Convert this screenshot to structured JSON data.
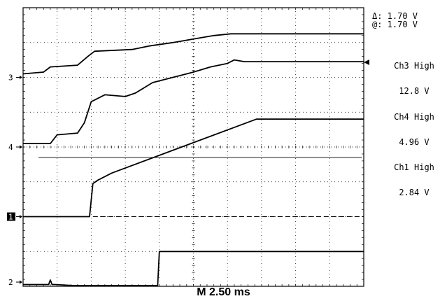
{
  "cursor": {
    "delta_label": "Δ: 1.70 V",
    "at_label": "@: 1.70 V"
  },
  "timebase_label": "M 2.50 ms",
  "chart_data": {
    "type": "line",
    "title": "",
    "xlabel": "",
    "ylabel": "",
    "grid": true,
    "x_divisions": 10,
    "y_divisions": 8,
    "xlim": [
      0,
      10
    ],
    "ylim": [
      0,
      8
    ],
    "channel_markers": [
      {
        "label": "3",
        "level": 6.0
      },
      {
        "label": "4",
        "level": 4.0
      },
      {
        "label": "1",
        "level": 2.0,
        "highlight": true
      },
      {
        "label": "2",
        "level": 0.0
      }
    ],
    "readouts": [
      {
        "channel": "Ch3",
        "label": "Ch3 High",
        "value": "12.8 V"
      },
      {
        "channel": "Ch4",
        "label": "Ch4 High",
        "value": "4.96 V"
      },
      {
        "channel": "Ch1",
        "label": "Ch1 High",
        "value": "2.84 V"
      }
    ],
    "cursor_level": 3.7,
    "trigger_level": 6.4,
    "series": [
      {
        "channel": "Ch3",
        "x": [
          0,
          0.6,
          0.8,
          1.6,
          1.9,
          2.1,
          3.2,
          3.7,
          4.4,
          5.0,
          5.6,
          6.1,
          7.0,
          10.0
        ],
        "y": [
          6.1,
          6.15,
          6.3,
          6.35,
          6.6,
          6.75,
          6.8,
          6.9,
          7.0,
          7.1,
          7.2,
          7.25,
          7.25,
          7.25
        ]
      },
      {
        "channel": "Ch4",
        "x": [
          0,
          0.8,
          1.0,
          1.6,
          1.8,
          2.0,
          2.4,
          3.0,
          3.3,
          3.8,
          4.2,
          5.0,
          5.5,
          6.0,
          6.2,
          6.5,
          7.0,
          10.0
        ],
        "y": [
          4.1,
          4.1,
          4.35,
          4.4,
          4.7,
          5.3,
          5.5,
          5.45,
          5.55,
          5.85,
          5.95,
          6.15,
          6.3,
          6.4,
          6.5,
          6.45,
          6.45,
          6.45
        ]
      },
      {
        "channel": "Ch1",
        "x": [
          0,
          1.95,
          2.05,
          2.2,
          2.6,
          6.85,
          10.0
        ],
        "y": [
          2.0,
          2.0,
          2.95,
          3.05,
          3.25,
          4.8,
          4.8
        ]
      },
      {
        "channel": "Ch2",
        "x": [
          0,
          0.75,
          0.8,
          0.85,
          0.9,
          0.95,
          1.5,
          3.95,
          4.0,
          10.0
        ],
        "y": [
          0.05,
          0.05,
          0.18,
          0.05,
          0.05,
          0.05,
          0.02,
          0.02,
          1.0,
          1.0
        ]
      }
    ]
  }
}
